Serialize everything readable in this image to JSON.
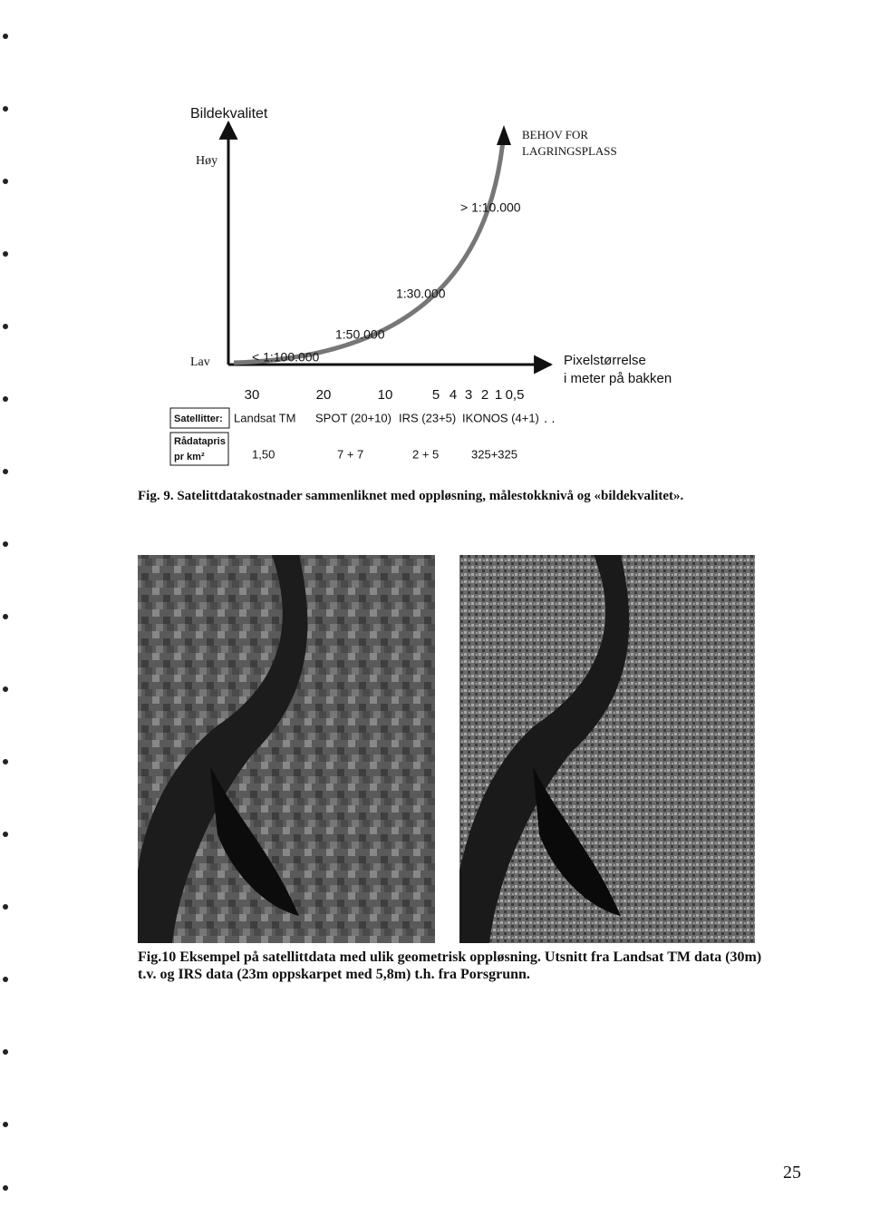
{
  "figure9": {
    "y_axis_title": "Bildekvalitet",
    "y_high": "Høy",
    "y_low": "Lav",
    "curve_label": [
      "BEHOV FOR",
      "LAGRINGSPLASS"
    ],
    "scale_labels": [
      "< 1:100.000",
      "1:50.000",
      "1:30.000",
      "> 1:10.000"
    ],
    "x_axis_title": [
      "Pixelstørrelse",
      "i meter på bakken"
    ],
    "pixel_sizes": [
      "30",
      "20",
      "10",
      "5",
      "4",
      "3",
      "2",
      "1",
      "0,5"
    ],
    "satellites_label": "Satellitter:",
    "satellites": [
      "Landsat TM",
      "SPOT (20+10)",
      "IRS (23+5)",
      "IKONOS (4+1)"
    ],
    "satellites_more": ". .",
    "price_label": [
      "Rådatapris",
      "pr km²"
    ],
    "prices": [
      "1,50",
      "7 + 7",
      "2 + 5",
      "325+325"
    ]
  },
  "caption9": {
    "number": "Fig. 9.",
    "text": "Satelittdatakostnader sammenliknet med oppløsning, målestokknivå og «bildekvalitet»."
  },
  "figure10": {
    "caption": "Fig.10 Eksempel på satellittdata med ulik geometrisk oppløsning. Utsnitt fra Landsat TM data (30m) t.v. og IRS data (23m oppskarpet med 5,8m) t.h. fra Porsgrunn."
  },
  "page_number": "25"
}
